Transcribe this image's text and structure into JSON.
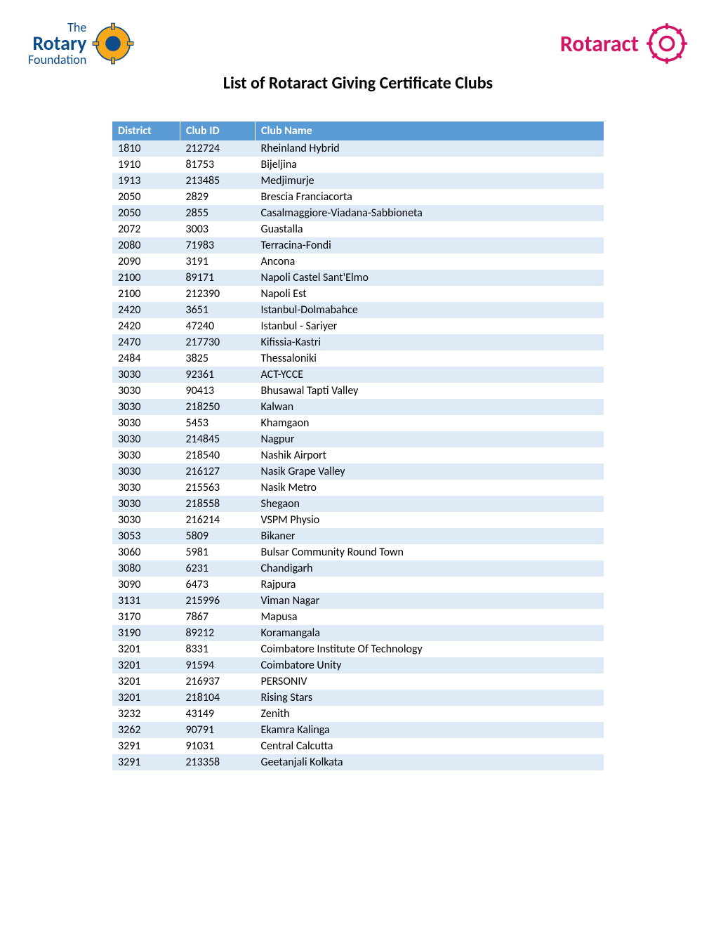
{
  "header": {
    "left_logo_line1": "The",
    "left_logo_line2": "Rotary",
    "left_logo_line3": "Foundation",
    "right_logo_text": "Rotaract"
  },
  "title": "List of Rotaract Giving Certificate Clubs",
  "columns": [
    "District",
    "Club ID",
    "Club Name"
  ],
  "colors": {
    "header_bg": "#5b9bd5",
    "header_fg": "#ffffff",
    "row_odd": "#deeaf6",
    "row_even": "#ffffff",
    "rotary_blue": "#0f4c8c",
    "rotary_gold": "#f7a81b",
    "rotaract_pink": "#d41367"
  },
  "rows": [
    [
      "1810",
      "212724",
      "Rheinland Hybrid"
    ],
    [
      "1910",
      "81753",
      "Bijeljina"
    ],
    [
      "1913",
      "213485",
      "Medjimurje"
    ],
    [
      "2050",
      "2829",
      "Brescia Franciacorta"
    ],
    [
      "2050",
      "2855",
      "Casalmaggiore-Viadana-Sabbioneta"
    ],
    [
      "2072",
      "3003",
      "Guastalla"
    ],
    [
      "2080",
      "71983",
      "Terracina-Fondi"
    ],
    [
      "2090",
      "3191",
      "Ancona"
    ],
    [
      "2100",
      "89171",
      "Napoli Castel Sant'Elmo"
    ],
    [
      "2100",
      "212390",
      "Napoli Est"
    ],
    [
      "2420",
      "3651",
      "Istanbul-Dolmabahce"
    ],
    [
      "2420",
      "47240",
      "Istanbul - Sariyer"
    ],
    [
      "2470",
      "217730",
      "Kifissia-Kastri"
    ],
    [
      "2484",
      "3825",
      "Thessaloniki"
    ],
    [
      "3030",
      "92361",
      "ACT-YCCE"
    ],
    [
      "3030",
      "90413",
      "Bhusawal Tapti Valley"
    ],
    [
      "3030",
      "218250",
      "Kalwan"
    ],
    [
      "3030",
      "5453",
      "Khamgaon"
    ],
    [
      "3030",
      "214845",
      "Nagpur"
    ],
    [
      "3030",
      "218540",
      "Nashik Airport"
    ],
    [
      "3030",
      "216127",
      "Nasik Grape Valley"
    ],
    [
      "3030",
      "215563",
      "Nasik Metro"
    ],
    [
      "3030",
      "218558",
      "Shegaon"
    ],
    [
      "3030",
      "216214",
      "VSPM Physio"
    ],
    [
      "3053",
      "5809",
      "Bikaner"
    ],
    [
      "3060",
      "5981",
      "Bulsar Community Round Town"
    ],
    [
      "3080",
      "6231",
      "Chandigarh"
    ],
    [
      "3090",
      "6473",
      "Rajpura"
    ],
    [
      "3131",
      "215996",
      "Viman Nagar"
    ],
    [
      "3170",
      "7867",
      "Mapusa"
    ],
    [
      "3190",
      "89212",
      "Koramangala"
    ],
    [
      "3201",
      "8331",
      "Coimbatore Institute Of Technology"
    ],
    [
      "3201",
      "91594",
      "Coimbatore Unity"
    ],
    [
      "3201",
      "216937",
      "PERSONIV"
    ],
    [
      "3201",
      "218104",
      "Rising Stars"
    ],
    [
      "3232",
      "43149",
      "Zenith"
    ],
    [
      "3262",
      "90791",
      "Ekamra Kalinga"
    ],
    [
      "3291",
      "91031",
      "Central Calcutta"
    ],
    [
      "3291",
      "213358",
      "Geetanjali Kolkata"
    ]
  ]
}
